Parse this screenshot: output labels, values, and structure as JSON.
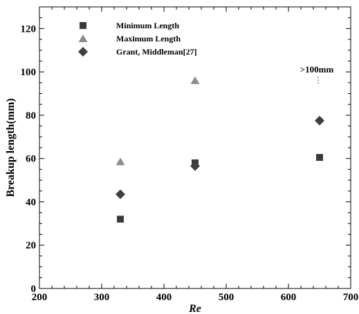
{
  "chart_data": {
    "type": "scatter",
    "xlabel": "Re",
    "ylabel": "Breakup length(mm)",
    "xlim": [
      200,
      700
    ],
    "ylim": [
      0,
      130
    ],
    "xticks": [
      200,
      300,
      400,
      500,
      600,
      700
    ],
    "yticks": [
      0,
      20,
      40,
      60,
      80,
      100,
      120
    ],
    "grid": false,
    "legend_position": "top-left",
    "series": [
      {
        "name": "Minimum Length",
        "marker": "square",
        "color": "#3a3a3a",
        "points": [
          {
            "x": 330,
            "y": 32
          },
          {
            "x": 450,
            "y": 58
          },
          {
            "x": 650,
            "y": 60.5
          }
        ]
      },
      {
        "name": "Maximum Length",
        "marker": "triangle",
        "color": "#8c8c8c",
        "points": [
          {
            "x": 330,
            "y": 58.5
          },
          {
            "x": 450,
            "y": 96
          }
        ]
      },
      {
        "name": "Grant, Middleman[27]",
        "marker": "diamond",
        "color": "#3f3f3f",
        "points": [
          {
            "x": 330,
            "y": 43.5
          },
          {
            "x": 450,
            "y": 56.5
          },
          {
            "x": 650,
            "y": 77.5
          }
        ]
      }
    ],
    "annotations": [
      {
        "text": ">100mm",
        "x": 650,
        "y": 100
      }
    ]
  }
}
